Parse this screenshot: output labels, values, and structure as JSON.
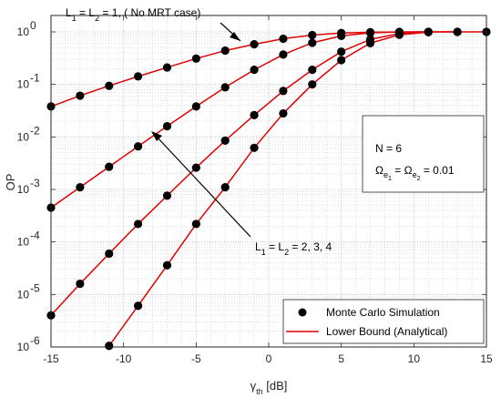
{
  "chart_data": {
    "type": "line",
    "xlabel": "γ_th [dB]",
    "ylabel": "OP",
    "xlim": [
      -15,
      15
    ],
    "ylim": [
      1e-06,
      1
    ],
    "yscale": "log",
    "grid": true,
    "x_ticks": [
      -15,
      -10,
      -5,
      0,
      5,
      10,
      15
    ],
    "y_ticks": [
      1e-06,
      1e-05,
      0.0001,
      0.001,
      0.01,
      0.1,
      1
    ],
    "legend": {
      "placement": "bottom-right",
      "entries": [
        "Monte Carlo Simulation",
        "Lower Bound (Analytical)"
      ]
    },
    "annotations": {
      "case1": "L_1 = L_2 = 1, ( No MRT case)",
      "case_mrt": "L_1 = L_2 = 2, 3, 4",
      "params_n": "N = 6",
      "params_omega": "Ω_e1 = Ω_e2 = 0.01"
    },
    "series": [
      {
        "x": [
          -15,
          -13,
          -11,
          -9,
          -7,
          -5,
          -3,
          -1,
          1,
          3,
          5,
          7,
          9,
          11,
          13,
          15
        ],
        "y": [
          0.038,
          0.061,
          0.094,
          0.142,
          0.21,
          0.31,
          0.44,
          0.58,
          0.74,
          0.87,
          0.95,
          0.985,
          0.997,
          1.0,
          1.0,
          1.0
        ]
      },
      {
        "x": [
          -15,
          -13,
          -11,
          -9,
          -7,
          -5,
          -3,
          -1,
          1,
          3,
          5,
          7,
          9,
          11,
          13
        ],
        "y": [
          0.00045,
          0.0011,
          0.0027,
          0.0066,
          0.016,
          0.038,
          0.088,
          0.19,
          0.37,
          0.62,
          0.84,
          0.96,
          0.995,
          1.0,
          1.0
        ]
      },
      {
        "x": [
          -15,
          -13,
          -11,
          -9,
          -7,
          -5,
          -3,
          -1,
          1,
          3,
          5,
          7,
          9,
          11
        ],
        "y": [
          4e-06,
          1.6e-05,
          6e-05,
          0.00022,
          0.00076,
          0.0026,
          0.0085,
          0.026,
          0.075,
          0.19,
          0.42,
          0.72,
          0.93,
          0.995
        ]
      },
      {
        "x": [
          -11,
          -9,
          -7,
          -5,
          -3,
          -1,
          1,
          3,
          5,
          7,
          9,
          11
        ],
        "y": [
          1.05e-06,
          6.1e-06,
          3.6e-05,
          0.00022,
          0.0011,
          0.0062,
          0.028,
          0.1,
          0.29,
          0.61,
          0.88,
          0.99
        ]
      }
    ]
  }
}
